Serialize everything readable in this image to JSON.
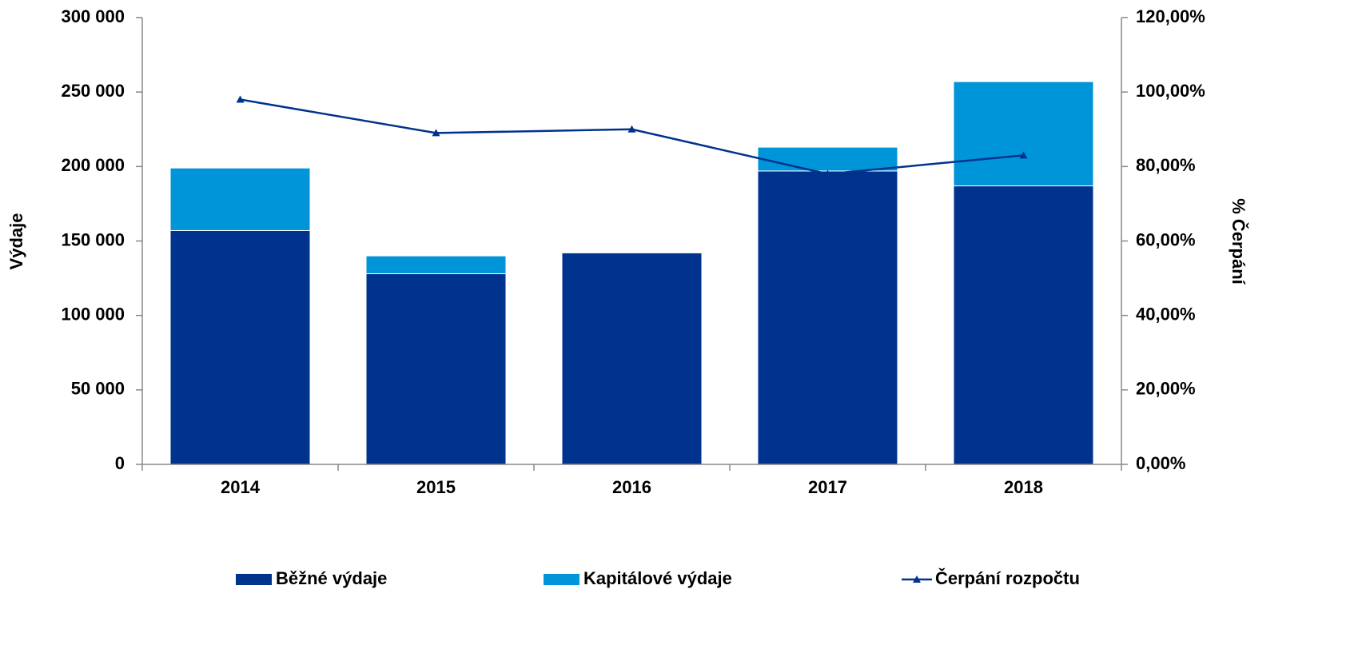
{
  "chart_data": {
    "type": "bar",
    "categories": [
      "2014",
      "2015",
      "2016",
      "2017",
      "2018"
    ],
    "series": [
      {
        "name": "Běžné výdaje",
        "color": "#00338d",
        "values": [
          157000,
          128000,
          142000,
          197000,
          187000
        ]
      },
      {
        "name": "Kapitálové výdaje",
        "color": "#0095d9",
        "values": [
          42000,
          12000,
          0,
          16000,
          70000
        ]
      },
      {
        "name": "Čerpání rozpočtu",
        "color": "#00338d",
        "type": "line",
        "axis": "y2",
        "values": [
          98,
          89,
          90,
          78,
          83
        ]
      }
    ],
    "stacked": true,
    "ylabel": "Výdaje",
    "y2label": "% Čerpání",
    "ylim": [
      0,
      300000
    ],
    "yticks": [
      0,
      {
        "value": 50000,
        "label": "50 000"
      },
      {
        "value": 100000,
        "label": "100 000"
      },
      {
        "value": 150000,
        "label": "150 000"
      },
      {
        "value": 200000,
        "label": "200 000"
      },
      {
        "value": 250000,
        "label": "250 000"
      },
      {
        "value": 300000,
        "label": "300 000"
      }
    ],
    "y2lim": [
      0,
      120
    ],
    "y2ticks": [
      {
        "value": 0,
        "label": "0,00%"
      },
      {
        "value": 20,
        "label": "20,00%"
      },
      {
        "value": 40,
        "label": "40,00%"
      },
      {
        "value": 60,
        "label": "60,00%"
      },
      {
        "value": 80,
        "label": "80,00%"
      },
      {
        "value": 100,
        "label": "100,00%"
      },
      {
        "value": 120,
        "label": "120,00%"
      }
    ],
    "grid": false,
    "legend": "bottom"
  }
}
